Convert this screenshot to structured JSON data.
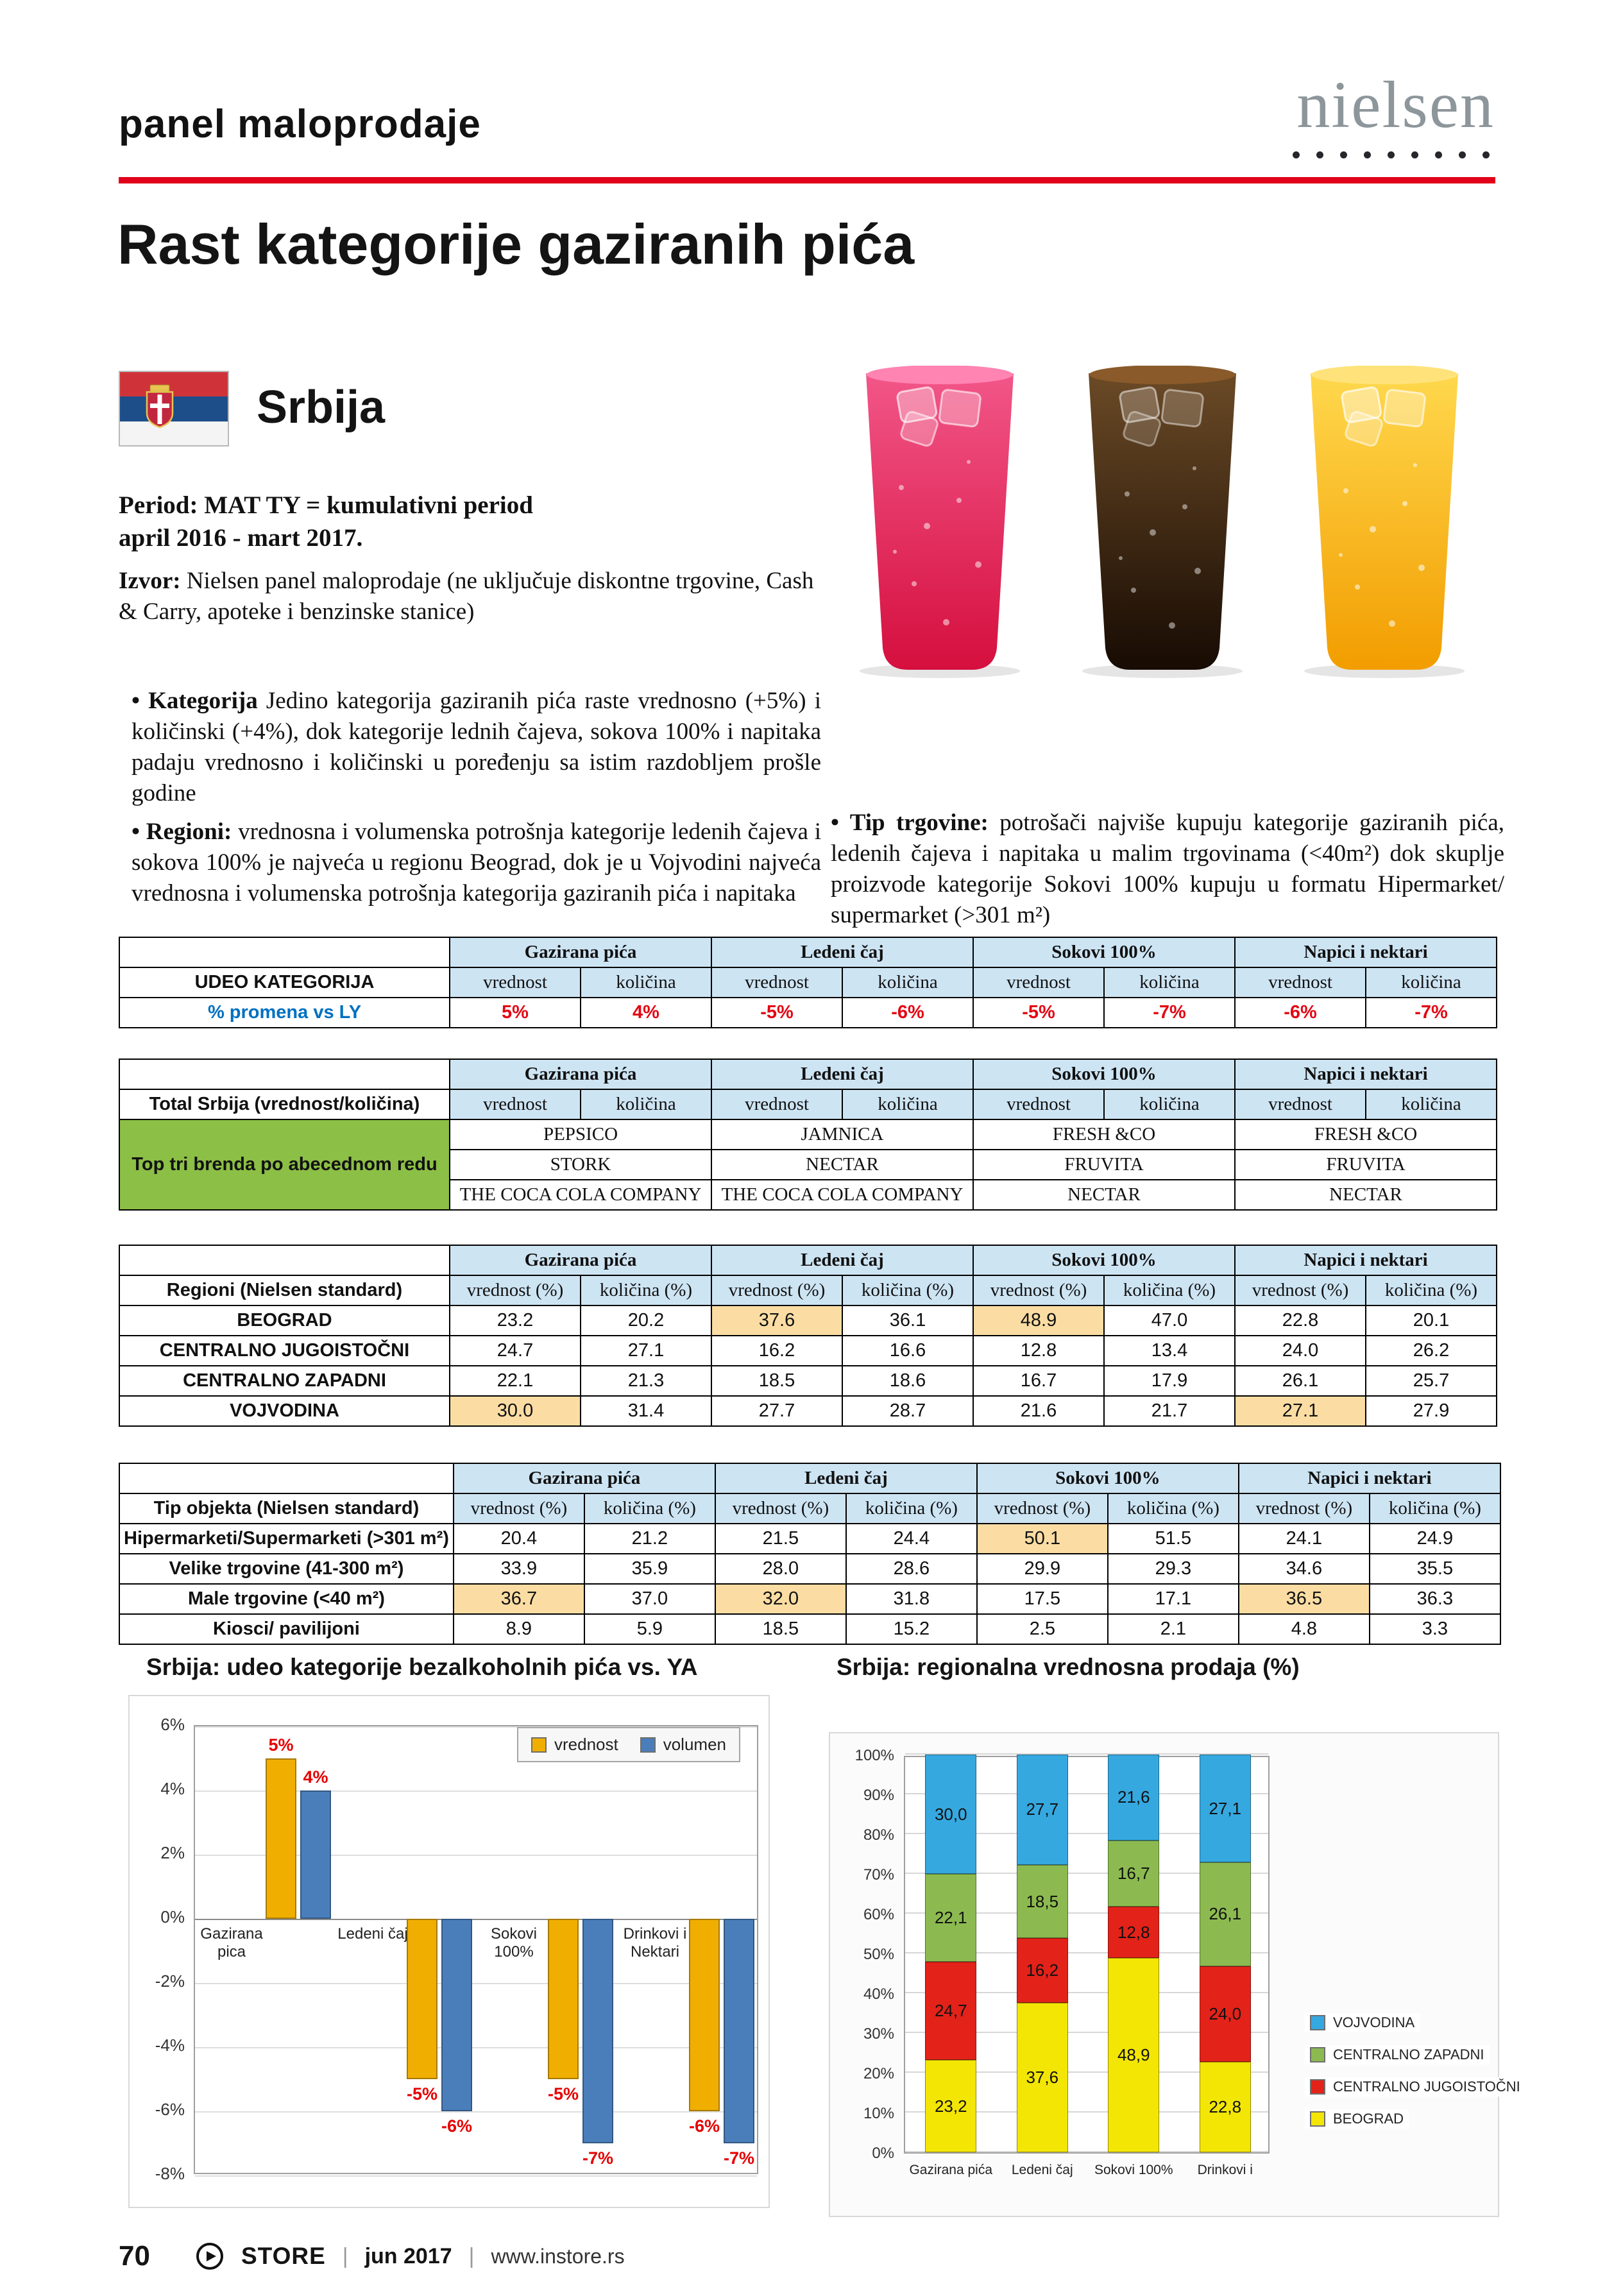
{
  "header": {
    "kicker": "panel maloprodaje",
    "brand": "nielsen"
  },
  "title": "Rast kategorije gaziranih pića",
  "country": "Srbija",
  "intro": {
    "period_line1": "Period: MAT TY = kumulativni period",
    "period_line2": "april 2016 - mart 2017.",
    "source_label": "Izvor:",
    "source_text": "Nielsen panel maloprodaje (ne uključuje diskontne trgovine, Cash & Carry, apoteke i benzinske stanice)"
  },
  "bullets": {
    "kategorija_lead": "Kategorija",
    "kategorija_text": "Jedino kategorija gaziranih pića raste vrednosno (+5%) i količinski (+4%), dok kategorije lednih čajeva, sokova 100% i napitaka padaju vrednosno i količinski u poređenju sa istim razdobljem prošle godine",
    "regioni_lead": "Regioni:",
    "regioni_text": "vrednosna i volumenska potrošnja kategorije ledenih čajeva i sokova 100% je najveća u regionu Beograd, dok je u Vojvodini najveća vrednosna i volumenska potrošnja kategorija gaziranih pića i napitaka",
    "tip_lead": "Tip trgovine:",
    "tip_text": "potrošači najviše kupuju kategorije gaziranih pića, ledenih čajeva i napitaka u malim trgovinama (<40m²) dok skuplje proizvode kategorije Sokovi 100% kupuju u formatu Hipermarket/ supermarket (>301 m²)"
  },
  "categories": [
    "Gazirana pića",
    "Ledeni čaj",
    "Sokovi 100%",
    "Napici i nektari"
  ],
  "subheaders": {
    "plain": [
      "vrednost",
      "količina"
    ],
    "pct": [
      "vrednost (%)",
      "količina (%)"
    ]
  },
  "table_udeo": {
    "label": "UDEO KATEGORIJA",
    "row_label": "% promena vs LY",
    "values": [
      "5%",
      "4%",
      "-5%",
      "-6%",
      "-5%",
      "-7%",
      "-6%",
      "-7%"
    ]
  },
  "table_brands": {
    "label": "Total Srbija (vrednost/količina)",
    "side_label": "Top tri brenda po abecednom redu",
    "rows": [
      [
        "PEPSICO",
        "JAMNICA",
        "FRESH &CO",
        "FRESH &CO"
      ],
      [
        "STORK",
        "NECTAR",
        "FRUVITA",
        "FRUVITA"
      ],
      [
        "THE COCA COLA COMPANY",
        "THE COCA COLA COMPANY",
        "NECTAR",
        "NECTAR"
      ]
    ]
  },
  "table_regions": {
    "label": "Regioni (Nielsen standard)",
    "rows": [
      {
        "label": "BEOGRAD",
        "values": [
          "23.2",
          "20.2",
          "37.6",
          "36.1",
          "48.9",
          "47.0",
          "22.8",
          "20.1"
        ],
        "highlights": [
          2,
          4
        ]
      },
      {
        "label": "CENTRALNO JUGOISTOČNI",
        "values": [
          "24.7",
          "27.1",
          "16.2",
          "16.6",
          "12.8",
          "13.4",
          "24.0",
          "26.2"
        ],
        "highlights": []
      },
      {
        "label": "CENTRALNO ZAPADNI",
        "values": [
          "22.1",
          "21.3",
          "18.5",
          "18.6",
          "16.7",
          "17.9",
          "26.1",
          "25.7"
        ],
        "highlights": []
      },
      {
        "label": "VOJVODINA",
        "values": [
          "30.0",
          "31.4",
          "27.7",
          "28.7",
          "21.6",
          "21.7",
          "27.1",
          "27.9"
        ],
        "highlights": [
          0,
          6
        ]
      }
    ]
  },
  "table_outlets": {
    "label": "Tip objekta (Nielsen standard)",
    "rows": [
      {
        "label": "Hipermarketi/Supermarketi (>301 m²)",
        "values": [
          "20.4",
          "21.2",
          "21.5",
          "24.4",
          "50.1",
          "51.5",
          "24.1",
          "24.9"
        ],
        "highlights": [
          4
        ]
      },
      {
        "label": "Velike trgovine (41-300 m²)",
        "values": [
          "33.9",
          "35.9",
          "28.0",
          "28.6",
          "29.9",
          "29.3",
          "34.6",
          "35.5"
        ],
        "highlights": []
      },
      {
        "label": "Male trgovine (<40 m²)",
        "values": [
          "36.7",
          "37.0",
          "32.0",
          "31.8",
          "17.5",
          "17.1",
          "36.5",
          "36.3"
        ],
        "highlights": [
          0,
          2,
          6
        ]
      },
      {
        "label": "Kiosci/ pavilijoni",
        "values": [
          "8.9",
          "5.9",
          "18.5",
          "15.2",
          "2.5",
          "2.1",
          "4.8",
          "3.3"
        ],
        "highlights": []
      }
    ]
  },
  "chart_data": [
    {
      "type": "bar",
      "title": "Srbija: udeo kategorije bezalkoholnih pića vs. YA",
      "categories": [
        "Gazirana pica",
        "Ledeni čaj",
        "Sokovi 100%",
        "Drinkovi i Nektari"
      ],
      "series": [
        {
          "name": "vrednost",
          "color": "#F0AF00",
          "values": [
            5,
            -5,
            -5,
            -6
          ]
        },
        {
          "name": "volumen",
          "color": "#4A7EBB",
          "values": [
            4,
            -6,
            -7,
            -7
          ]
        }
      ],
      "ylim": [
        -8,
        6
      ],
      "ytick_step": 2,
      "grid": true,
      "legend_position": "top-right"
    },
    {
      "type": "stacked-bar",
      "title": "Srbija: regionalna vrednosna prodaja (%)",
      "categories": [
        "Gazirana pića",
        "Ledeni čaj",
        "Sokovi 100%",
        "Drinkovi i"
      ],
      "series": [
        {
          "name": "BEOGRAD",
          "color": "#F3E604",
          "values": [
            23.2,
            37.6,
            48.9,
            22.8
          ]
        },
        {
          "name": "CENTRALNO JUGOISTOČNI",
          "color": "#E32219",
          "values": [
            24.7,
            16.2,
            12.8,
            24.0
          ]
        },
        {
          "name": "CENTRALNO ZAPADNI",
          "color": "#8CBA50",
          "values": [
            22.1,
            18.5,
            16.7,
            26.1
          ]
        },
        {
          "name": "VOJVODINA",
          "color": "#35A8E0",
          "values": [
            30.0,
            27.7,
            21.6,
            27.1
          ]
        }
      ],
      "ylim": [
        0,
        100
      ],
      "ytick_step": 10,
      "grid": true,
      "legend_position": "right",
      "legend_order": [
        "VOJVODINA",
        "CENTRALNO ZAPADNI",
        "CENTRALNO JUGOISTOČNI",
        "BEOGRAD"
      ]
    }
  ],
  "footer": {
    "page_number": "70",
    "magazine": "STORE",
    "issue": "jun 2017",
    "website": "www.instore.rs",
    "separator": "|"
  },
  "colors": {
    "accent_red": "#E2001A",
    "table_header_blue": "#CDE4F3",
    "highlight_tan": "#FBDDA4",
    "brand_green_cell": "#8CBF45",
    "negative_red": "#E30613",
    "promena_blue": "#0070C0",
    "nielsen_gray": "#8D969B"
  },
  "icons": {
    "footer_logo": "instore-circle-logo",
    "flag": "serbia-flag",
    "nielsen_dots": "dot-row"
  }
}
